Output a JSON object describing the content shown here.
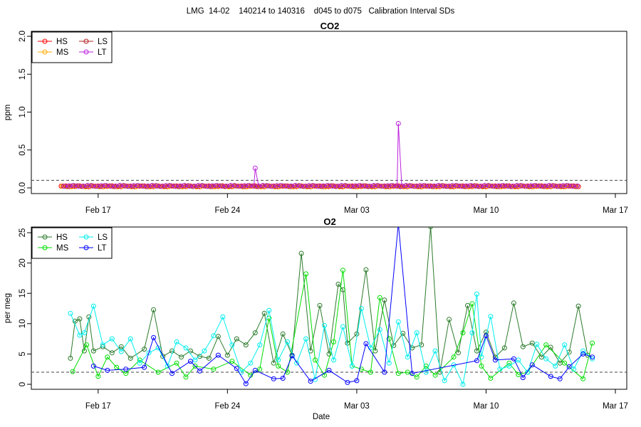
{
  "overall_title": "LMG  14-02    140214 to 140316    d045 to d075   Calibration Interval SDs",
  "colors": {
    "HS": "#2b7a2b",
    "MS": "#00dd00",
    "LS": "#00eeee",
    "LT": "#0000ff",
    "CO2_HS": "#ff0000",
    "CO2_MS": "#ffaa00",
    "CO2_LS": "#b22222",
    "CO2_LT": "#bb22dd",
    "threshold": "#444444"
  },
  "chart_data": [
    {
      "type": "line",
      "title": "CO2",
      "ylabel": "ppm",
      "xlabel": "",
      "x_ticks": [
        "Feb 17",
        "Feb 24",
        "Mar 03",
        "Mar 10",
        "Mar 17"
      ],
      "y_ticks": [
        "0.0",
        "0.5",
        "1.0",
        "1.5",
        "2.0"
      ],
      "xlim": [
        "2014-02-14",
        "2014-03-17"
      ],
      "ylim": [
        0,
        2.0
      ],
      "threshold": 0.1,
      "legend": [
        "HS",
        "MS",
        "LS",
        "LT"
      ],
      "legend_position": "top-left",
      "series": [
        {
          "name": "HS",
          "color_key": "CO2_HS",
          "x_range": [
            "2014-02-15",
            "2014-03-15"
          ],
          "baseline": 0.015,
          "spikes": []
        },
        {
          "name": "MS",
          "color_key": "CO2_MS",
          "x_range": [
            "2014-02-15",
            "2014-03-15"
          ],
          "baseline": 0.012,
          "spikes": []
        },
        {
          "name": "LS",
          "color_key": "CO2_LS",
          "x_range": [
            "2014-02-15",
            "2014-03-15"
          ],
          "baseline": 0.018,
          "spikes": []
        },
        {
          "name": "LT",
          "color_key": "CO2_LT",
          "x_range": [
            "2014-02-15",
            "2014-03-15"
          ],
          "baseline": 0.02,
          "spikes": [
            [
              "2014-02-25T12:00",
              0.26
            ],
            [
              "2014-03-05T06:00",
              0.85
            ]
          ]
        }
      ]
    },
    {
      "type": "line",
      "title": "O2",
      "ylabel": "per meg",
      "xlabel": "Date",
      "x_ticks": [
        "Feb 17",
        "Feb 24",
        "Mar 03",
        "Mar 10",
        "Mar 17"
      ],
      "y_ticks": [
        "0",
        "5",
        "10",
        "15",
        "20",
        "25"
      ],
      "xlim": [
        "2014-02-14",
        "2014-03-17"
      ],
      "ylim": [
        0,
        25
      ],
      "threshold": 2,
      "legend": [
        "HS",
        "MS",
        "LS",
        "LT"
      ],
      "legend_position": "top-left",
      "series": [
        {
          "name": "HS",
          "color_key": "HS",
          "points": [
            [
              "2014-02-15T12:00",
              4.3
            ],
            [
              "2014-02-15T18:00",
              10.4
            ],
            [
              "2014-02-16T00:00",
              10.8
            ],
            [
              "2014-02-16T06:00",
              5.5
            ],
            [
              "2014-02-16T12:00",
              11.1
            ],
            [
              "2014-02-16T18:00",
              5.5
            ],
            [
              "2014-02-17T06:00",
              6.2
            ],
            [
              "2014-02-17T18:00",
              5.2
            ],
            [
              "2014-02-18T06:00",
              6.2
            ],
            [
              "2014-02-18T18:00",
              4.3
            ],
            [
              "2014-02-19T12:00",
              5.8
            ],
            [
              "2014-02-20T00:00",
              12.3
            ],
            [
              "2014-02-20T12:00",
              4.6
            ],
            [
              "2014-02-21T00:00",
              5.5
            ],
            [
              "2014-02-21T12:00",
              4.5
            ],
            [
              "2014-02-22T00:00",
              5.5
            ],
            [
              "2014-02-22T12:00",
              4.6
            ],
            [
              "2014-02-23T00:00",
              4.3
            ],
            [
              "2014-02-23T12:00",
              7.9
            ],
            [
              "2014-02-24T00:00",
              4.8
            ],
            [
              "2014-02-24T12:00",
              7.5
            ],
            [
              "2014-02-25T00:00",
              6.5
            ],
            [
              "2014-02-25T12:00",
              8.5
            ],
            [
              "2014-02-26T00:00",
              11.7
            ],
            [
              "2014-02-26T12:00",
              3.5
            ],
            [
              "2014-02-27T00:00",
              8.3
            ],
            [
              "2014-02-27T12:00",
              4.8
            ],
            [
              "2014-02-28T00:00",
              21.6
            ],
            [
              "2014-02-28T12:00",
              5.5
            ],
            [
              "2014-03-01T00:00",
              13.0
            ],
            [
              "2014-03-01T12:00",
              5.0
            ],
            [
              "2014-03-02T00:00",
              16.5
            ],
            [
              "2014-03-02T06:00",
              15.6
            ],
            [
              "2014-03-02T12:00",
              6.8
            ],
            [
              "2014-03-03T00:00",
              8.3
            ],
            [
              "2014-03-03T12:00",
              18.9
            ],
            [
              "2014-03-04T00:00",
              5.5
            ],
            [
              "2014-03-04T12:00",
              13.9
            ],
            [
              "2014-03-05T00:00",
              6.4
            ],
            [
              "2014-03-05T12:00",
              8.4
            ],
            [
              "2014-03-06T00:00",
              6.0
            ],
            [
              "2014-03-06T12:00",
              6.5
            ],
            [
              "2014-03-07T00:00",
              26.0
            ],
            [
              "2014-03-07T12:00",
              2.0
            ],
            [
              "2014-03-08T00:00",
              10.7
            ],
            [
              "2014-03-08T12:00",
              5.2
            ],
            [
              "2014-03-09T00:00",
              13.0
            ],
            [
              "2014-03-09T12:00",
              5.5
            ],
            [
              "2014-03-10T00:00",
              8.6
            ],
            [
              "2014-03-10T12:00",
              4.5
            ],
            [
              "2014-03-11T00:00",
              6.0
            ],
            [
              "2014-03-11T12:00",
              13.4
            ],
            [
              "2014-03-12T00:00",
              6.2
            ],
            [
              "2014-03-12T12:00",
              6.8
            ],
            [
              "2014-03-13T00:00",
              4.5
            ],
            [
              "2014-03-13T12:00",
              6.1
            ],
            [
              "2014-03-14T00:00",
              3.5
            ],
            [
              "2014-03-14T12:00",
              5.3
            ],
            [
              "2014-03-15T00:00",
              12.9
            ],
            [
              "2014-03-15T12:00",
              4.8
            ]
          ]
        },
        {
          "name": "MS",
          "color_key": "MS",
          "points": [
            [
              "2014-02-15T15:00",
              2.1
            ],
            [
              "2014-02-16T09:00",
              6.5
            ],
            [
              "2014-02-17T00:00",
              1.3
            ],
            [
              "2014-02-17T12:00",
              4.5
            ],
            [
              "2014-02-18T00:00",
              2.8
            ],
            [
              "2014-02-18T12:00",
              1.8
            ],
            [
              "2014-02-19T06:00",
              4.0
            ],
            [
              "2014-02-20T06:00",
              2.0
            ],
            [
              "2014-02-21T06:00",
              3.5
            ],
            [
              "2014-02-21T18:00",
              1.2
            ],
            [
              "2014-02-22T06:00",
              3.0
            ],
            [
              "2014-02-23T06:00",
              2.5
            ],
            [
              "2014-02-24T06:00",
              3.8
            ],
            [
              "2014-02-25T06:00",
              1.5
            ],
            [
              "2014-02-25T18:00",
              2.5
            ],
            [
              "2014-02-26T06:00",
              10.9
            ],
            [
              "2014-02-26T18:00",
              3.0
            ],
            [
              "2014-02-27T06:00",
              2.0
            ],
            [
              "2014-02-28T06:00",
              18.2
            ],
            [
              "2014-02-28T18:00",
              4.0
            ],
            [
              "2014-03-01T06:00",
              1.5
            ],
            [
              "2014-03-01T18:00",
              7.0
            ],
            [
              "2014-03-02T06:00",
              18.8
            ],
            [
              "2014-03-02T18:00",
              3.0
            ],
            [
              "2014-03-03T06:00",
              2.5
            ],
            [
              "2014-03-03T18:00",
              2.0
            ],
            [
              "2014-03-04T06:00",
              14.3
            ],
            [
              "2014-03-04T18:00",
              7.5
            ],
            [
              "2014-03-05T06:00",
              1.8
            ],
            [
              "2014-03-05T18:00",
              2.0
            ],
            [
              "2014-03-06T06:00",
              1.2
            ],
            [
              "2014-03-06T18:00",
              3.0
            ],
            [
              "2014-03-07T06:00",
              1.5
            ],
            [
              "2014-03-08T06:00",
              4.5
            ],
            [
              "2014-03-08T18:00",
              8.5
            ],
            [
              "2014-03-09T06:00",
              13.3
            ],
            [
              "2014-03-09T18:00",
              3.0
            ],
            [
              "2014-03-10T06:00",
              1.0
            ],
            [
              "2014-03-11T06:00",
              3.5
            ],
            [
              "2014-03-11T18:00",
              1.6
            ],
            [
              "2014-03-12T06:00",
              2.0
            ],
            [
              "2014-03-13T06:00",
              6.5
            ],
            [
              "2014-03-14T06:00",
              3.5
            ],
            [
              "2014-03-15T06:00",
              0.9
            ],
            [
              "2014-03-15T18:00",
              6.8
            ]
          ]
        },
        {
          "name": "LS",
          "color_key": "LS",
          "points": [
            [
              "2014-02-15T12:00",
              11.7
            ],
            [
              "2014-02-16T00:00",
              8.1
            ],
            [
              "2014-02-16T06:00",
              8.5
            ],
            [
              "2014-02-16T18:00",
              12.9
            ],
            [
              "2014-02-17T06:00",
              6.5
            ],
            [
              "2014-02-17T18:00",
              7.5
            ],
            [
              "2014-02-18T06:00",
              5.4
            ],
            [
              "2014-02-18T18:00",
              7.5
            ],
            [
              "2014-02-19T06:00",
              3.5
            ],
            [
              "2014-02-19T18:00",
              5.2
            ],
            [
              "2014-02-20T06:00",
              6.0
            ],
            [
              "2014-02-20T18:00",
              3.0
            ],
            [
              "2014-02-21T06:00",
              7.0
            ],
            [
              "2014-02-21T18:00",
              6.0
            ],
            [
              "2014-02-22T06:00",
              4.0
            ],
            [
              "2014-02-22T18:00",
              5.5
            ],
            [
              "2014-02-23T06:00",
              8.0
            ],
            [
              "2014-02-23T18:00",
              11.1
            ],
            [
              "2014-02-24T06:00",
              6.5
            ],
            [
              "2014-02-24T18:00",
              2.0
            ],
            [
              "2014-02-25T06:00",
              3.5
            ],
            [
              "2014-02-25T18:00",
              6.5
            ],
            [
              "2014-02-26T06:00",
              12.2
            ],
            [
              "2014-02-26T18:00",
              4.0
            ],
            [
              "2014-02-27T06:00",
              7.0
            ],
            [
              "2014-02-27T18:00",
              3.5
            ],
            [
              "2014-02-28T06:00",
              7.5
            ],
            [
              "2014-02-28T18:00",
              0.8
            ],
            [
              "2014-03-01T06:00",
              9.7
            ],
            [
              "2014-03-01T18:00",
              4.0
            ],
            [
              "2014-03-02T06:00",
              9.5
            ],
            [
              "2014-03-02T18:00",
              3.0
            ],
            [
              "2014-03-03T06:00",
              12.5
            ],
            [
              "2014-03-03T18:00",
              6.0
            ],
            [
              "2014-03-04T06:00",
              9.0
            ],
            [
              "2014-03-04T18:00",
              3.5
            ],
            [
              "2014-03-05T06:00",
              10.3
            ],
            [
              "2014-03-05T18:00",
              4.5
            ],
            [
              "2014-03-06T06:00",
              8.5
            ],
            [
              "2014-03-06T18:00",
              2.0
            ],
            [
              "2014-03-07T06:00",
              5.5
            ],
            [
              "2014-03-07T18:00",
              0.6
            ],
            [
              "2014-03-08T06:00",
              3.2
            ],
            [
              "2014-03-08T18:00",
              0.0
            ],
            [
              "2014-03-09T06:00",
              8.5
            ],
            [
              "2014-03-09T12:00",
              14.9
            ],
            [
              "2014-03-09T18:00",
              4.5
            ],
            [
              "2014-03-10T06:00",
              11.2
            ],
            [
              "2014-03-10T18:00",
              2.5
            ],
            [
              "2014-03-11T06:00",
              3.0
            ],
            [
              "2014-03-11T18:00",
              4.0
            ],
            [
              "2014-03-12T06:00",
              2.0
            ],
            [
              "2014-03-12T18:00",
              6.6
            ],
            [
              "2014-03-13T06:00",
              4.2
            ],
            [
              "2014-03-13T18:00",
              3.0
            ],
            [
              "2014-03-14T06:00",
              6.5
            ],
            [
              "2014-03-14T18:00",
              2.5
            ],
            [
              "2014-03-15T06:00",
              5.5
            ],
            [
              "2014-03-15T18:00",
              4.2
            ]
          ]
        },
        {
          "name": "LT",
          "color_key": "LT",
          "points": [
            [
              "2014-02-16T18:00",
              3.0
            ],
            [
              "2014-02-17T12:00",
              2.3
            ],
            [
              "2014-02-18T12:00",
              2.5
            ],
            [
              "2014-02-19T12:00",
              2.8
            ],
            [
              "2014-02-20T00:00",
              7.7
            ],
            [
              "2014-02-21T00:00",
              1.8
            ],
            [
              "2014-02-22T00:00",
              3.8
            ],
            [
              "2014-02-22T12:00",
              2.2
            ],
            [
              "2014-02-23T12:00",
              4.8
            ],
            [
              "2014-02-24T12:00",
              2.6
            ],
            [
              "2014-02-25T00:00",
              0.1
            ],
            [
              "2014-02-25T12:00",
              2.3
            ],
            [
              "2014-02-26T12:00",
              0.9
            ],
            [
              "2014-02-27T00:00",
              1.0
            ],
            [
              "2014-02-27T12:00",
              4.7
            ],
            [
              "2014-02-28T12:00",
              0.5
            ],
            [
              "2014-03-01T12:00",
              2.3
            ],
            [
              "2014-03-02T12:00",
              0.3
            ],
            [
              "2014-03-03T00:00",
              0.6
            ],
            [
              "2014-03-03T12:00",
              6.7
            ],
            [
              "2014-03-04T12:00",
              2.0
            ],
            [
              "2014-03-05T06:00",
              26.5
            ],
            [
              "2014-03-06T00:00",
              1.8
            ],
            [
              "2014-03-09T12:00",
              3.9
            ],
            [
              "2014-03-10T00:00",
              8.0
            ],
            [
              "2014-03-10T12:00",
              4.0
            ],
            [
              "2014-03-11T12:00",
              4.2
            ],
            [
              "2014-03-12T00:00",
              1.1
            ],
            [
              "2014-03-12T12:00",
              3.2
            ],
            [
              "2014-03-13T12:00",
              1.3
            ],
            [
              "2014-03-14T00:00",
              0.9
            ],
            [
              "2014-03-14T12:00",
              2.9
            ],
            [
              "2014-03-15T06:00",
              5.0
            ],
            [
              "2014-03-15T18:00",
              4.5
            ]
          ]
        }
      ]
    }
  ]
}
